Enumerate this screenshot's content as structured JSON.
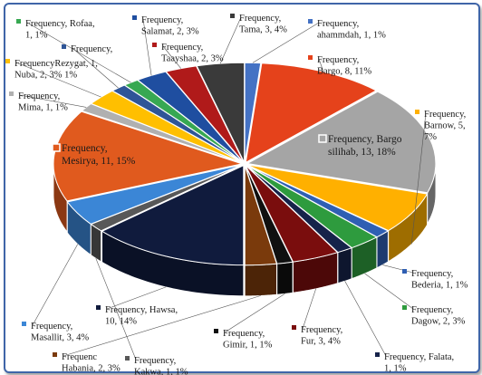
{
  "chart_data": {
    "type": "pie",
    "style": "3d-exploded",
    "series_name": "Frequency",
    "slices": [
      {
        "name": "ahammdah",
        "value": 1,
        "percent": "1%",
        "color": "#4472c4"
      },
      {
        "name": "Bargo",
        "value": 8,
        "percent": "11%",
        "color": "#e5421b"
      },
      {
        "name": "Bargo silihab",
        "value": 13,
        "percent": "18%",
        "color": "#a5a5a5"
      },
      {
        "name": "Barnow",
        "value": 5,
        "percent": "7%",
        "color": "#ffb000"
      },
      {
        "name": "Bederia",
        "value": 1,
        "percent": "1%",
        "color": "#2f5fb3"
      },
      {
        "name": "Dagow",
        "value": 2,
        "percent": "3%",
        "color": "#2e9b3e"
      },
      {
        "name": "Falata",
        "value": 1,
        "percent": "1%",
        "color": "#16234a"
      },
      {
        "name": "Fur",
        "value": 3,
        "percent": "4%",
        "color": "#7a0d0d"
      },
      {
        "name": "Gimir",
        "value": 1,
        "percent": "1%",
        "color": "#101010"
      },
      {
        "name": "Habania",
        "value": 2,
        "percent": "3%",
        "color": "#7a3a0c"
      },
      {
        "name": "Hawsa",
        "value": 10,
        "percent": "14%",
        "color": "#101b3d"
      },
      {
        "name": "Kakwa",
        "value": 1,
        "percent": "1%",
        "color": "#585858"
      },
      {
        "name": "Masallit",
        "value": 3,
        "percent": "4%",
        "color": "#3b86d6"
      },
      {
        "name": "Mesirya",
        "value": 11,
        "percent": "15%",
        "color": "#e05a1e"
      },
      {
        "name": "Mima",
        "value": 1,
        "percent": "1%",
        "color": "#b0b0b0"
      },
      {
        "name": "Nuba",
        "value": 2,
        "percent": "3%",
        "color": "#ffbf00"
      },
      {
        "name": "Rezygat",
        "value": 1,
        "percent": "1%",
        "color": "#2f5597"
      },
      {
        "name": "Rofaa",
        "value": 1,
        "percent": "1%",
        "color": "#37a852"
      },
      {
        "name": "Salamat",
        "value": 2,
        "percent": "3%",
        "color": "#1f4ea0"
      },
      {
        "name": "Taayshaa",
        "value": 2,
        "percent": "3%",
        "color": "#b01a1a"
      },
      {
        "name": "Tama",
        "value": 3,
        "percent": "4%",
        "color": "#3a3a3a"
      }
    ],
    "labels": [
      {
        "lines": [
          "Frequency, Rofaa,",
          "1, 1%"
        ],
        "slice": "Rofaa",
        "color": "#37a852"
      },
      {
        "lines": [
          "Frequency,",
          "Salamat, 2, 3%"
        ],
        "slice": "Salamat",
        "color": "#1f4ea0"
      },
      {
        "lines": [
          "Frequency,",
          "Tama, 3, 4%"
        ],
        "slice": "Tama",
        "color": "#3a3a3a"
      },
      {
        "lines": [
          "Frequency,",
          "ahammdah, 1, 1%"
        ],
        "slice": "ahammdah",
        "color": "#4472c4"
      },
      {
        "lines": [
          "Frequency,"
        ],
        "slice": "Rezygat",
        "color": "#2f5597"
      },
      {
        "lines": [
          "Frequency,",
          "Taayshaa, 2, 3%"
        ],
        "slice": "Taayshaa",
        "color": "#b01a1a"
      },
      {
        "lines": [
          "Frequency,",
          "Bargo, 8, 11%"
        ],
        "slice": "Bargo",
        "color": "#e5421b"
      },
      {
        "lines": [
          "FrequencyRezygat, 1,",
          "Nuba, 2, 3%     1%"
        ],
        "slice": "Nuba",
        "color": "#ffbf00"
      },
      {
        "lines": [
          "Frequency,",
          "Mima, 1, 1%"
        ],
        "slice": "Mima",
        "color": "#b0b0b0"
      },
      {
        "lines": [
          "Frequency,",
          "Barnow, 5,",
          "7%"
        ],
        "slice": "Barnow",
        "color": "#ffb000"
      },
      {
        "lines": [
          "Frequency,",
          "Mesirya, 11, 15%"
        ],
        "slice": "Mesirya",
        "color": "#e05a1e"
      },
      {
        "lines": [
          "Frequency, Bargo",
          "silihab, 13, 18%"
        ],
        "slice": "Bargo silihab",
        "color": "#a5a5a5"
      },
      {
        "lines": [
          "Frequency,",
          "Bederia, 1, 1%"
        ],
        "slice": "Bederia",
        "color": "#2f5fb3"
      },
      {
        "lines": [
          "Frequency,",
          "Dagow, 2, 3%"
        ],
        "slice": "Dagow",
        "color": "#2e9b3e"
      },
      {
        "lines": [
          "Frequency, Hawsa,",
          "10, 14%"
        ],
        "slice": "Hawsa",
        "color": "#101b3d"
      },
      {
        "lines": [
          "Frequency,",
          "Masallit, 3, 4%"
        ],
        "slice": "Masallit",
        "color": "#3b86d6"
      },
      {
        "lines": [
          "Frequency,",
          "Gimir, 1, 1%"
        ],
        "slice": "Gimir",
        "color": "#101010"
      },
      {
        "lines": [
          "Frequency,",
          "Fur, 3, 4%"
        ],
        "slice": "Fur",
        "color": "#7a0d0d"
      },
      {
        "lines": [
          "Frequency, Falata,",
          "1, 1%"
        ],
        "slice": "Falata",
        "color": "#16234a"
      },
      {
        "lines": [
          "Frequenc",
          "Habania, 2, 3%"
        ],
        "slice": "Habania",
        "color": "#7a3a0c"
      },
      {
        "lines": [
          "Frequency,",
          "Kakwa, 1, 1%"
        ],
        "slice": "Kakwa",
        "color": "#585858"
      }
    ]
  }
}
